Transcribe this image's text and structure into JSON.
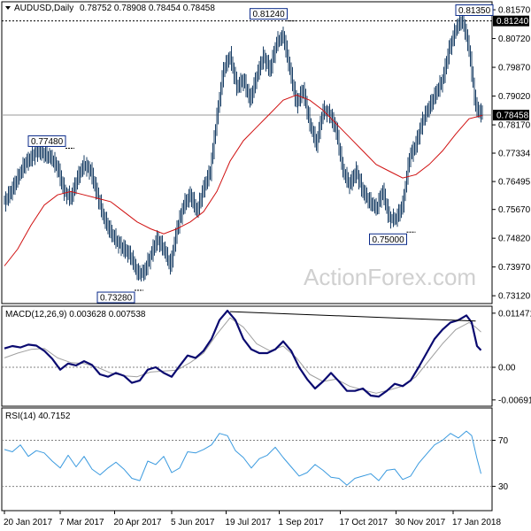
{
  "header": {
    "symbol": "AUDUSD,Daily",
    "ohlc": "0.78752 0.78908 0.78454 0.78458"
  },
  "macd_label": "MACD(12,26,9) 0.003628 0.007538",
  "rsi_label": "RSI(14) 40.7152",
  "watermark": "ActionForex.com",
  "colors": {
    "candles": "#1a3f66",
    "ma": "#d01010",
    "macd": "#0a0a70",
    "signal": "#a0a0a0",
    "rsi": "#3a9adf",
    "ref": "#808080"
  },
  "chart_data": [
    {
      "type": "candlestick",
      "title": "AUDUSD,Daily",
      "x_ticks": [
        "20 Jan 2017",
        "7 Mar 2017",
        "20 Apr 2017",
        "5 Jun 2017",
        "19 Jul 2017",
        "1 Sep 2017",
        "17 Oct 2017",
        "30 Nov 2017",
        "17 Jan 2018"
      ],
      "y_ticks": [
        "0.81570",
        "0.80720",
        "0.79870",
        "0.79020",
        "0.78170",
        "0.77334",
        "0.76495",
        "0.75670",
        "0.74820",
        "0.73970",
        "0.73120"
      ],
      "ylim": [
        0.7302,
        0.8165
      ],
      "current_price": "0.78458",
      "resistance_line": "0.81240",
      "annotations": [
        "0.77480",
        "0.73280",
        "0.81240",
        "0.75000",
        "0.81350"
      ],
      "close_path": [
        [
          0,
          0.759
        ],
        [
          5,
          0.762
        ],
        [
          10,
          0.766
        ],
        [
          15,
          0.77
        ],
        [
          20,
          0.772
        ],
        [
          25,
          0.774
        ],
        [
          30,
          0.773
        ],
        [
          35,
          0.772
        ],
        [
          40,
          0.769
        ],
        [
          45,
          0.762
        ],
        [
          50,
          0.76
        ],
        [
          55,
          0.766
        ],
        [
          60,
          0.77
        ],
        [
          65,
          0.768
        ],
        [
          70,
          0.761
        ],
        [
          75,
          0.754
        ],
        [
          80,
          0.75
        ],
        [
          85,
          0.747
        ],
        [
          90,
          0.745
        ],
        [
          95,
          0.743
        ],
        [
          100,
          0.738
        ],
        [
          105,
          0.738
        ],
        [
          110,
          0.743
        ],
        [
          115,
          0.748
        ],
        [
          120,
          0.745
        ],
        [
          125,
          0.74
        ],
        [
          130,
          0.751
        ],
        [
          135,
          0.758
        ],
        [
          140,
          0.761
        ],
        [
          145,
          0.756
        ],
        [
          150,
          0.763
        ],
        [
          155,
          0.768
        ],
        [
          160,
          0.784
        ],
        [
          165,
          0.798
        ],
        [
          170,
          0.802
        ],
        [
          175,
          0.793
        ],
        [
          180,
          0.795
        ],
        [
          185,
          0.789
        ],
        [
          190,
          0.796
        ],
        [
          195,
          0.802
        ],
        [
          200,
          0.798
        ],
        [
          205,
          0.806
        ],
        [
          210,
          0.808
        ],
        [
          215,
          0.798
        ],
        [
          220,
          0.788
        ],
        [
          225,
          0.792
        ],
        [
          230,
          0.782
        ],
        [
          235,
          0.776
        ],
        [
          240,
          0.786
        ],
        [
          245,
          0.785
        ],
        [
          250,
          0.78
        ],
        [
          255,
          0.768
        ],
        [
          260,
          0.764
        ],
        [
          265,
          0.768
        ],
        [
          270,
          0.762
        ],
        [
          275,
          0.759
        ],
        [
          280,
          0.757
        ],
        [
          285,
          0.762
        ],
        [
          290,
          0.754
        ],
        [
          295,
          0.754
        ],
        [
          300,
          0.758
        ],
        [
          305,
          0.772
        ],
        [
          310,
          0.776
        ],
        [
          315,
          0.783
        ],
        [
          320,
          0.787
        ],
        [
          325,
          0.791
        ],
        [
          330,
          0.795
        ],
        [
          335,
          0.804
        ],
        [
          340,
          0.81
        ],
        [
          345,
          0.813
        ],
        [
          350,
          0.804
        ],
        [
          355,
          0.787
        ],
        [
          360,
          0.7846
        ]
      ],
      "ma": [
        [
          0,
          0.74
        ],
        [
          10,
          0.745
        ],
        [
          20,
          0.752
        ],
        [
          30,
          0.758
        ],
        [
          40,
          0.761
        ],
        [
          50,
          0.762
        ],
        [
          60,
          0.761
        ],
        [
          70,
          0.76
        ],
        [
          80,
          0.759
        ],
        [
          90,
          0.756
        ],
        [
          100,
          0.753
        ],
        [
          110,
          0.751
        ],
        [
          120,
          0.7495
        ],
        [
          130,
          0.751
        ],
        [
          140,
          0.753
        ],
        [
          150,
          0.756
        ],
        [
          160,
          0.762
        ],
        [
          170,
          0.771
        ],
        [
          180,
          0.777
        ],
        [
          190,
          0.781
        ],
        [
          200,
          0.785
        ],
        [
          210,
          0.789
        ],
        [
          220,
          0.7905
        ],
        [
          230,
          0.789
        ],
        [
          240,
          0.786
        ],
        [
          250,
          0.782
        ],
        [
          260,
          0.778
        ],
        [
          270,
          0.774
        ],
        [
          280,
          0.77
        ],
        [
          290,
          0.768
        ],
        [
          300,
          0.766
        ],
        [
          310,
          0.767
        ],
        [
          320,
          0.77
        ],
        [
          330,
          0.774
        ],
        [
          340,
          0.779
        ],
        [
          350,
          0.7835
        ],
        [
          360,
          0.7845
        ]
      ]
    },
    {
      "type": "line",
      "title": "MACD(12,26,9) 0.003628 0.007538",
      "y_ticks": [
        "0.011471",
        "0.00",
        "-0.006913"
      ],
      "ylim": [
        -0.0075,
        0.0122
      ],
      "trendline": [
        [
          170,
          0.0118
        ],
        [
          355,
          0.0098
        ]
      ],
      "macd": [
        [
          0,
          0.004
        ],
        [
          6,
          0.0045
        ],
        [
          12,
          0.0042
        ],
        [
          18,
          0.0048
        ],
        [
          24,
          0.0046
        ],
        [
          30,
          0.0035
        ],
        [
          36,
          0.0018
        ],
        [
          42,
          -0.0005
        ],
        [
          48,
          0.0008
        ],
        [
          54,
          0.0004
        ],
        [
          60,
          0.0013
        ],
        [
          66,
          0.0005
        ],
        [
          72,
          -0.0015
        ],
        [
          78,
          -0.002
        ],
        [
          84,
          -0.0012
        ],
        [
          90,
          -0.0018
        ],
        [
          96,
          -0.0033
        ],
        [
          102,
          -0.0028
        ],
        [
          108,
          -0.0005
        ],
        [
          114,
          0.0
        ],
        [
          120,
          -0.0012
        ],
        [
          126,
          -0.002
        ],
        [
          132,
          0.0003
        ],
        [
          138,
          0.0025
        ],
        [
          144,
          0.002
        ],
        [
          150,
          0.0035
        ],
        [
          156,
          0.006
        ],
        [
          162,
          0.01
        ],
        [
          168,
          0.012
        ],
        [
          174,
          0.01
        ],
        [
          180,
          0.006
        ],
        [
          186,
          0.0038
        ],
        [
          192,
          0.003
        ],
        [
          198,
          0.003
        ],
        [
          204,
          0.0038
        ],
        [
          210,
          0.0055
        ],
        [
          216,
          0.0035
        ],
        [
          222,
          0.0
        ],
        [
          228,
          -0.0025
        ],
        [
          234,
          -0.0045
        ],
        [
          240,
          -0.003
        ],
        [
          246,
          -0.0012
        ],
        [
          252,
          -0.003
        ],
        [
          258,
          -0.005
        ],
        [
          264,
          -0.005
        ],
        [
          270,
          -0.0045
        ],
        [
          276,
          -0.006
        ],
        [
          282,
          -0.0062
        ],
        [
          288,
          -0.005
        ],
        [
          294,
          -0.0035
        ],
        [
          300,
          -0.004
        ],
        [
          306,
          -0.0028
        ],
        [
          312,
          0.0
        ],
        [
          318,
          0.003
        ],
        [
          324,
          0.006
        ],
        [
          330,
          0.008
        ],
        [
          336,
          0.0095
        ],
        [
          342,
          0.01
        ],
        [
          348,
          0.011
        ],
        [
          352,
          0.0095
        ],
        [
          356,
          0.0045
        ],
        [
          359,
          0.0036
        ]
      ],
      "signal": [
        [
          0,
          0.002
        ],
        [
          10,
          0.003
        ],
        [
          20,
          0.0038
        ],
        [
          30,
          0.004
        ],
        [
          40,
          0.002
        ],
        [
          50,
          0.001
        ],
        [
          60,
          0.0008
        ],
        [
          70,
          0.0
        ],
        [
          80,
          -0.0012
        ],
        [
          90,
          -0.0018
        ],
        [
          100,
          -0.002
        ],
        [
          110,
          -0.001
        ],
        [
          120,
          -0.0008
        ],
        [
          130,
          -0.0006
        ],
        [
          140,
          0.001
        ],
        [
          150,
          0.003
        ],
        [
          160,
          0.007
        ],
        [
          170,
          0.0105
        ],
        [
          180,
          0.0085
        ],
        [
          190,
          0.005
        ],
        [
          200,
          0.0035
        ],
        [
          210,
          0.0045
        ],
        [
          220,
          0.002
        ],
        [
          230,
          -0.0015
        ],
        [
          240,
          -0.003
        ],
        [
          250,
          -0.0025
        ],
        [
          260,
          -0.004
        ],
        [
          270,
          -0.0048
        ],
        [
          280,
          -0.0055
        ],
        [
          290,
          -0.0048
        ],
        [
          300,
          -0.004
        ],
        [
          310,
          -0.002
        ],
        [
          320,
          0.0015
        ],
        [
          330,
          0.005
        ],
        [
          340,
          0.008
        ],
        [
          350,
          0.0095
        ],
        [
          355,
          0.0085
        ],
        [
          359,
          0.0075
        ]
      ]
    },
    {
      "type": "line",
      "title": "RSI(14) 40.7152",
      "y_ticks": [
        "70",
        "30"
      ],
      "ylim": [
        12,
        95
      ],
      "rsi": [
        [
          0,
          62
        ],
        [
          6,
          60
        ],
        [
          12,
          66
        ],
        [
          18,
          56
        ],
        [
          24,
          61
        ],
        [
          30,
          59
        ],
        [
          36,
          52
        ],
        [
          42,
          46
        ],
        [
          48,
          57
        ],
        [
          54,
          47
        ],
        [
          60,
          56
        ],
        [
          66,
          45
        ],
        [
          72,
          40
        ],
        [
          78,
          46
        ],
        [
          84,
          51
        ],
        [
          90,
          45
        ],
        [
          96,
          37
        ],
        [
          102,
          35
        ],
        [
          108,
          52
        ],
        [
          114,
          49
        ],
        [
          120,
          56
        ],
        [
          126,
          42
        ],
        [
          132,
          46
        ],
        [
          138,
          60
        ],
        [
          144,
          59
        ],
        [
          150,
          62
        ],
        [
          156,
          66
        ],
        [
          162,
          76
        ],
        [
          168,
          74
        ],
        [
          174,
          61
        ],
        [
          180,
          55
        ],
        [
          186,
          46
        ],
        [
          192,
          54
        ],
        [
          198,
          57
        ],
        [
          204,
          64
        ],
        [
          210,
          55
        ],
        [
          216,
          47
        ],
        [
          222,
          39
        ],
        [
          228,
          42
        ],
        [
          234,
          49
        ],
        [
          240,
          44
        ],
        [
          246,
          38
        ],
        [
          252,
          37
        ],
        [
          258,
          31
        ],
        [
          264,
          37
        ],
        [
          270,
          39
        ],
        [
          276,
          41
        ],
        [
          282,
          35
        ],
        [
          288,
          44
        ],
        [
          294,
          45
        ],
        [
          300,
          36
        ],
        [
          306,
          39
        ],
        [
          312,
          50
        ],
        [
          318,
          58
        ],
        [
          324,
          66
        ],
        [
          330,
          70
        ],
        [
          336,
          76
        ],
        [
          342,
          72
        ],
        [
          348,
          78
        ],
        [
          352,
          74
        ],
        [
          356,
          54
        ],
        [
          359,
          41
        ]
      ]
    }
  ]
}
